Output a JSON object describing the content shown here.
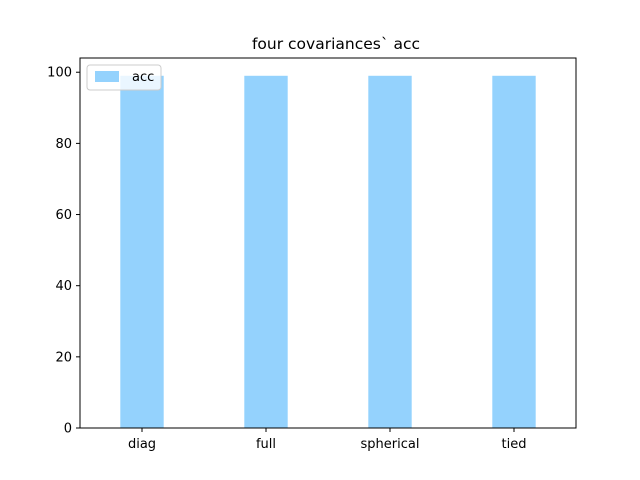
{
  "chart_data": {
    "type": "bar",
    "title": "four covariances` acc",
    "xlabel": "",
    "ylabel": "",
    "categories": [
      "diag",
      "full",
      "spherical",
      "tied"
    ],
    "series": [
      {
        "name": "acc",
        "values": [
          99,
          99,
          99,
          99
        ],
        "color": "#94d2fd"
      }
    ],
    "ylim": [
      0,
      104
    ],
    "yticks": [
      0,
      20,
      40,
      60,
      80,
      100
    ],
    "grid": false,
    "legend": {
      "position": "upper left",
      "entries": [
        "acc"
      ]
    }
  }
}
